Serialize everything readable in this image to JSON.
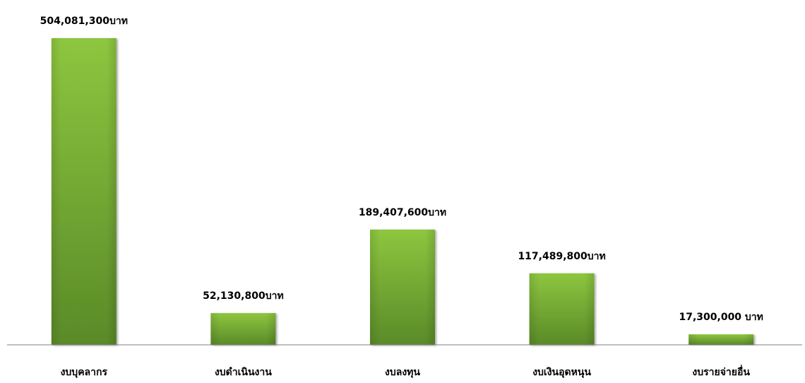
{
  "chart_data": {
    "type": "bar",
    "title": "",
    "xlabel": "",
    "ylabel": "",
    "categories": [
      "งบบุคลากร",
      "งบดำเนินงาน",
      "งบลงทุน",
      "งบเงินอุดหนุน",
      "งบรายจ่ายอื่น"
    ],
    "values": [
      504081300,
      52130800,
      189407600,
      117489800,
      17300000
    ],
    "data_labels": [
      "504,081,300บาท",
      "52,130,800บาท",
      "189,407,600บาท",
      "117,489,800บาท",
      "17,300,000 บาท"
    ],
    "ylim": [
      0,
      504081300
    ],
    "grid": false,
    "legend": "none",
    "colors": {
      "bar_top": "#8dc63f",
      "bar_bottom": "#5a8a28",
      "axis": "#7f7f7f",
      "text": "#000000"
    }
  }
}
